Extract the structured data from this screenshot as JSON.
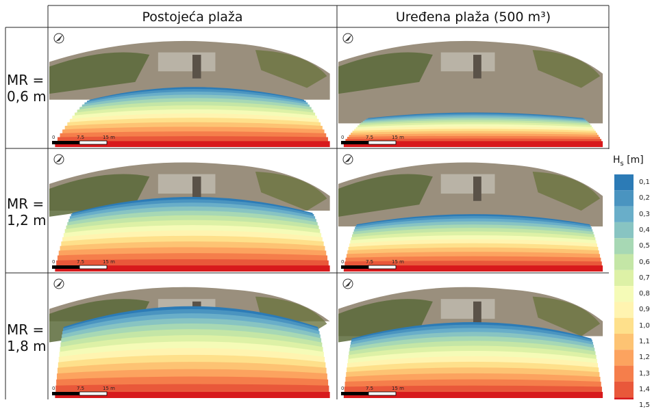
{
  "columns": [
    "Postojeća plaža",
    "Uređena plaža (500 m³)"
  ],
  "rows": [
    {
      "line1": "MR =",
      "line2": "0,6 m"
    },
    {
      "line1": "MR =",
      "line2": "1,2 m"
    },
    {
      "line1": "MR =",
      "line2": "1,8 m"
    }
  ],
  "scalebar": [
    "0",
    "7.5",
    "15 m"
  ],
  "legend": {
    "title_main": "H",
    "title_sub": "s",
    "title_unit": " [m]",
    "levels": [
      {
        "label": "0,1",
        "color": "#2c7bb6"
      },
      {
        "label": "0,2",
        "color": "#4a94c0"
      },
      {
        "label": "0,3",
        "color": "#69aec9"
      },
      {
        "label": "0,4",
        "color": "#88c4c2"
      },
      {
        "label": "0,5",
        "color": "#a7d8b4"
      },
      {
        "label": "0,6",
        "color": "#c4e6a6"
      },
      {
        "label": "0,7",
        "color": "#ddf1a6"
      },
      {
        "label": "0,8",
        "color": "#f5fbb7"
      },
      {
        "label": "0,9",
        "color": "#fff4b0"
      },
      {
        "label": "1,0",
        "color": "#fee08b"
      },
      {
        "label": "1,1",
        "color": "#fdc373"
      },
      {
        "label": "1,2",
        "color": "#fca35f"
      },
      {
        "label": "1,3",
        "color": "#f57e4b"
      },
      {
        "label": "1,4",
        "color": "#e9583a"
      },
      {
        "label": "1,5",
        "color": "#d7191c"
      }
    ]
  },
  "icons": [
    "north-arrow-icon"
  ]
}
